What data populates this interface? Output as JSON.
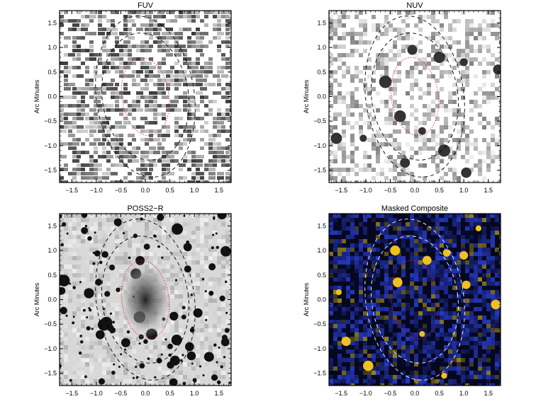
{
  "panels": [
    {
      "id": "fuv",
      "title": "FUV",
      "ylabel": "Arc Minutes",
      "style": "fuv"
    },
    {
      "id": "nuv",
      "title": "NUV",
      "ylabel": "Arc Minutes",
      "style": "nuv"
    },
    {
      "id": "poss",
      "title": "POSS2−R",
      "ylabel": "Arc Minutes",
      "style": "poss"
    },
    {
      "id": "comp",
      "title": "Masked Composite",
      "ylabel": "Arc Minutes",
      "style": "comp"
    }
  ],
  "axes": {
    "xlim": [
      -1.75,
      1.75
    ],
    "ylim": [
      -1.75,
      1.75
    ],
    "xticks": [
      -1.5,
      -1.0,
      -0.5,
      0.0,
      0.5,
      1.0,
      1.5
    ],
    "yticks": [
      -1.5,
      -1.0,
      -0.5,
      0.0,
      0.5,
      1.0,
      1.5
    ],
    "xtick_labels": [
      "−1.5",
      "−1.0",
      "−0.5",
      "0.0",
      "0.5",
      "1.0",
      "1.5"
    ],
    "ytick_labels": [
      "−1.5",
      "−1.0",
      "−0.5",
      "0.0",
      "0.5",
      "1.0",
      "1.5"
    ]
  },
  "ellipses": {
    "inner_red": {
      "cx": 0.0,
      "cy": 0.0,
      "rx": 0.48,
      "ry": 0.8,
      "color": "#e02020",
      "dash": "dotted"
    },
    "mid": {
      "cx": 0.0,
      "cy": 0.0,
      "rx": 0.88,
      "ry": 1.3,
      "color": "#000000",
      "dash": "dashed"
    },
    "outer": {
      "cx": 0.0,
      "cy": 0.0,
      "rx": 1.0,
      "ry": 1.65,
      "color": "#000000",
      "dash": "dashed"
    },
    "rotation_deg": -8
  },
  "colors": {
    "comp_bg": "#050820",
    "comp_blue": "#2f4fd0",
    "comp_yellow": "#f0c020",
    "comp_ellipse": "#ffffff"
  }
}
